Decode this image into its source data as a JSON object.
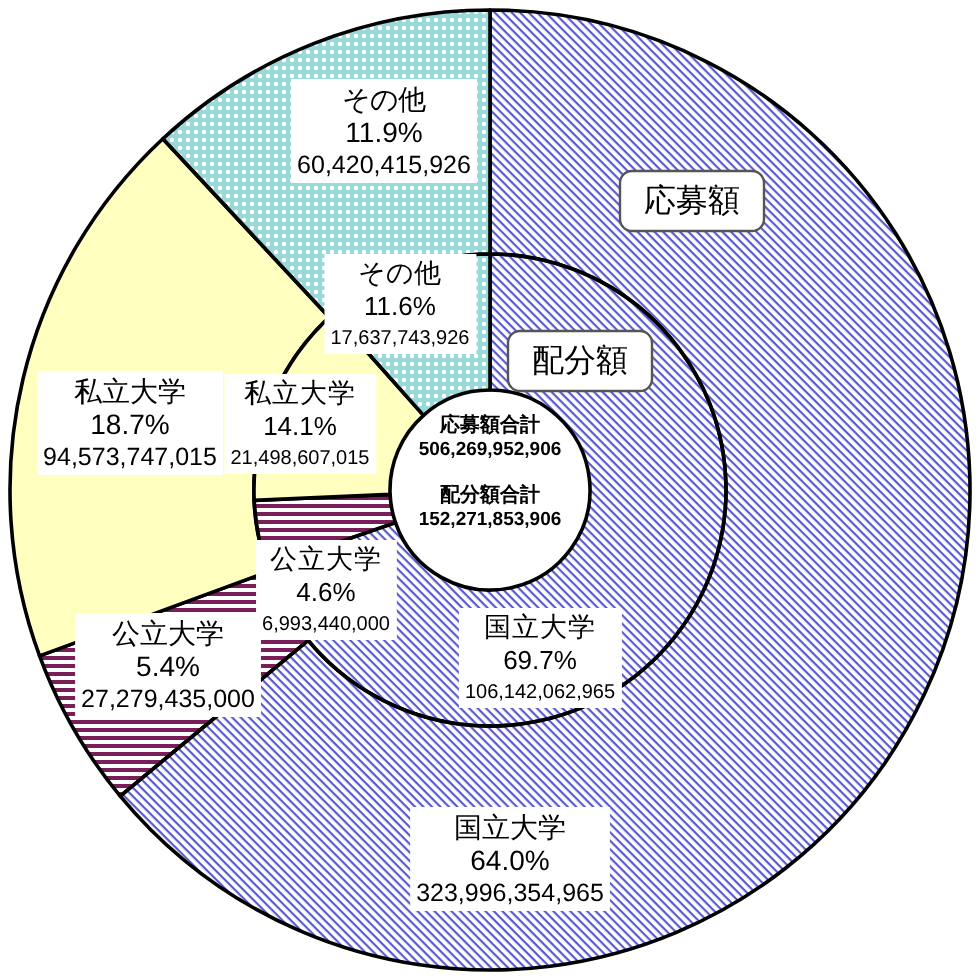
{
  "chart_data": [
    {
      "type": "donut",
      "title": "応募額",
      "categories": [
        "国立大学",
        "公立大学",
        "私立大学",
        "その他"
      ],
      "values": [
        323996354965,
        27279435000,
        94573747015,
        60420415926
      ],
      "colors": [
        "#5a5ad2",
        "#7a1e5a",
        "#ffffc0",
        "#99d9d9"
      ],
      "value_labels": [
        "64.0%\n323,996,354,965",
        "5.4%\n27,279,435,000",
        "18.7%\n94,573,747,015",
        "11.9%\n60,420,415,926"
      ],
      "annotations": [
        "応募額合計\n506,269,952,906"
      ]
    },
    {
      "type": "donut",
      "title": "配分額",
      "categories": [
        "国立大学",
        "公立大学",
        "私立大学",
        "その他"
      ],
      "values": [
        106142062965,
        6993440000,
        21498607015,
        17637743926
      ],
      "colors": [
        "#5a5ad2",
        "#7a1e5a",
        "#ffffc0",
        "#99d9d9"
      ],
      "value_labels": [
        "69.7%\n106,142,062,965",
        "4.6%\n6,993,440,000",
        "14.1%\n21,498,607,015",
        "11.6%\n17,637,743,926"
      ],
      "annotations": [
        "配分額合計\n152,271,853,906"
      ]
    }
  ]
}
